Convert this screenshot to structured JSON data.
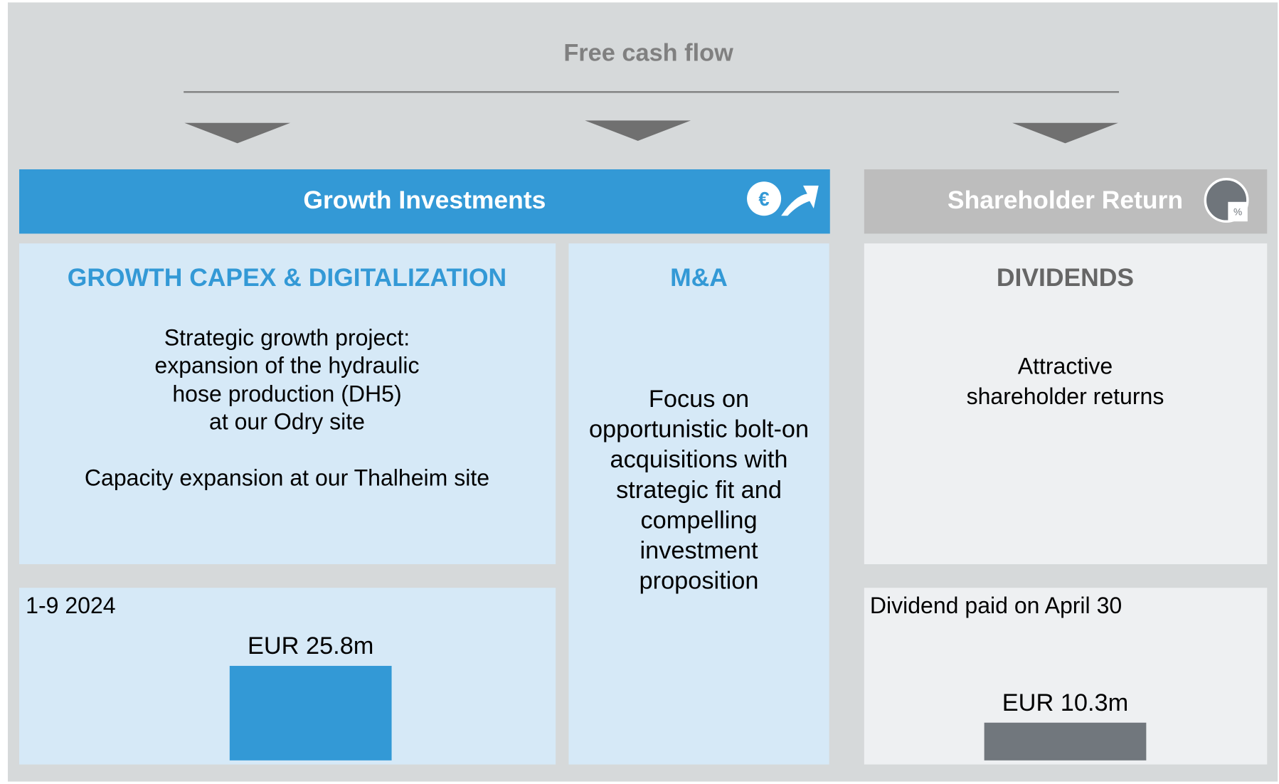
{
  "header": {
    "title": "Free cash flow"
  },
  "sections": [
    {
      "title": "Growth Investments",
      "icon": "€"
    },
    {
      "title": "Shareholder Return",
      "icon": "%"
    }
  ],
  "boxes": [
    {
      "title": "GROWTH CAPEX & DIGITALIZATION",
      "lines": [
        "Strategic growth project:",
        "expansion of the hydraulic",
        "hose production (DH5)",
        "at our Odry site",
        "Capacity expansion at our Thalheim site"
      ]
    },
    {
      "title": "M&A",
      "lines": [
        "Focus on",
        "opportunistic bolt-on",
        "acquisitions with",
        "strategic fit and",
        "compelling",
        "investment",
        "proposition"
      ]
    },
    {
      "title": "DIVIDENDS",
      "lines": [
        "Attractive",
        "shareholder returns"
      ]
    }
  ],
  "figures": [
    {
      "caption": "1-9 2024",
      "value": 25.8,
      "value_label": "EUR 25.8m",
      "color": "#3399d6"
    },
    {
      "caption": "Dividend paid on April 30",
      "value": 10.3,
      "value_label": "EUR 10.3m",
      "color": "#71777d"
    }
  ]
}
